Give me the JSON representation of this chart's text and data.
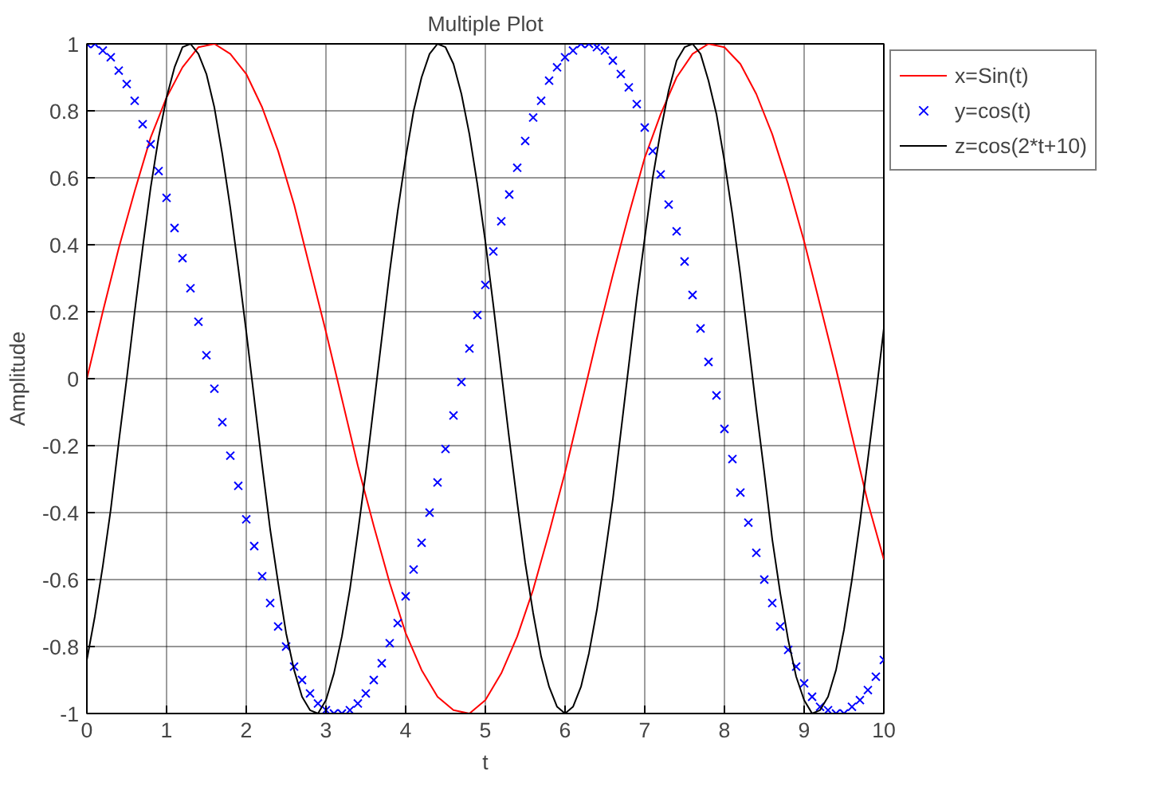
{
  "chart_data": {
    "type": "line",
    "title": "Multiple Plot",
    "xlabel": "t",
    "ylabel": "Amplitude",
    "xlim": [
      0,
      10
    ],
    "ylim": [
      -1,
      1
    ],
    "xticks": [
      0,
      1,
      2,
      3,
      4,
      5,
      6,
      7,
      8,
      9,
      10
    ],
    "yticks": [
      -1,
      -0.8,
      -0.6,
      -0.4,
      -0.2,
      0,
      0.2,
      0.4,
      0.6,
      0.8,
      1
    ],
    "grid": true,
    "legend": "top right",
    "line_style": "solid",
    "series": [
      {
        "name": "x=Sin(t)",
        "color": "#ff0000",
        "x": [
          0,
          0.2,
          0.4,
          0.6,
          0.8,
          1,
          1.2,
          1.4,
          1.6,
          1.8,
          2,
          2.2,
          2.4,
          2.6,
          2.8,
          3,
          3.2,
          3.4,
          3.6,
          3.8,
          4,
          4.2,
          4.4,
          4.6,
          4.8,
          5,
          5.2,
          5.4,
          5.6,
          5.8,
          6,
          6.2,
          6.4,
          6.6,
          6.8,
          7,
          7.2,
          7.4,
          7.6,
          7.8,
          8,
          8.2,
          8.4,
          8.6,
          8.8,
          9,
          9.2,
          9.4,
          9.6,
          9.8,
          10
        ],
        "values": [
          0,
          0.2,
          0.39,
          0.56,
          0.72,
          0.84,
          0.93,
          0.99,
          1,
          0.97,
          0.91,
          0.81,
          0.68,
          0.52,
          0.33,
          0.14,
          -0.06,
          -0.26,
          -0.44,
          -0.61,
          -0.76,
          -0.87,
          -0.95,
          -0.99,
          -1,
          -0.96,
          -0.88,
          -0.77,
          -0.63,
          -0.46,
          -0.28,
          -0.08,
          0.12,
          0.31,
          0.49,
          0.66,
          0.79,
          0.9,
          0.97,
          1,
          0.99,
          0.94,
          0.85,
          0.73,
          0.58,
          0.41,
          0.22,
          0.03,
          -0.17,
          -0.37,
          -0.54
        ]
      },
      {
        "name": "y=cos(t)",
        "color": "#0000ff",
        "type": "scatter",
        "marker": "cross",
        "x": [
          0,
          0.1,
          0.2,
          0.3,
          0.4,
          0.5,
          0.6,
          0.7,
          0.8,
          0.9,
          1,
          1.1,
          1.2,
          1.3,
          1.4,
          1.5,
          1.6,
          1.7,
          1.8,
          1.9,
          2,
          2.1,
          2.2,
          2.3,
          2.4,
          2.5,
          2.6,
          2.7,
          2.8,
          2.9,
          3,
          3.1,
          3.2,
          3.3,
          3.4,
          3.5,
          3.6,
          3.7,
          3.8,
          3.9,
          4,
          4.1,
          4.2,
          4.3,
          4.4,
          4.5,
          4.6,
          4.7,
          4.8,
          4.9,
          5,
          5.1,
          5.2,
          5.3,
          5.4,
          5.5,
          5.6,
          5.7,
          5.8,
          5.9,
          6,
          6.1,
          6.2,
          6.3,
          6.4,
          6.5,
          6.6,
          6.7,
          6.8,
          6.9,
          7,
          7.1,
          7.2,
          7.3,
          7.4,
          7.5,
          7.6,
          7.7,
          7.8,
          7.9,
          8,
          8.1,
          8.2,
          8.3,
          8.4,
          8.5,
          8.6,
          8.7,
          8.8,
          8.9,
          9,
          9.1,
          9.2,
          9.3,
          9.4,
          9.5,
          9.6,
          9.7,
          9.8,
          9.9,
          10
        ],
        "values": [
          1,
          1,
          0.98,
          0.96,
          0.92,
          0.88,
          0.83,
          0.76,
          0.7,
          0.62,
          0.54,
          0.45,
          0.36,
          0.27,
          0.17,
          0.07,
          -0.03,
          -0.13,
          -0.23,
          -0.32,
          -0.42,
          -0.5,
          -0.59,
          -0.67,
          -0.74,
          -0.8,
          -0.86,
          -0.9,
          -0.94,
          -0.97,
          -0.99,
          -1,
          -1,
          -0.99,
          -0.97,
          -0.94,
          -0.9,
          -0.85,
          -0.79,
          -0.73,
          -0.65,
          -0.57,
          -0.49,
          -0.4,
          -0.31,
          -0.21,
          -0.11,
          -0.01,
          0.09,
          0.19,
          0.28,
          0.38,
          0.47,
          0.55,
          0.63,
          0.71,
          0.78,
          0.83,
          0.89,
          0.93,
          0.96,
          0.98,
          1,
          1,
          0.99,
          0.98,
          0.95,
          0.91,
          0.87,
          0.82,
          0.75,
          0.68,
          0.61,
          0.52,
          0.44,
          0.35,
          0.25,
          0.15,
          0.05,
          -0.05,
          -0.15,
          -0.24,
          -0.34,
          -0.43,
          -0.52,
          -0.6,
          -0.67,
          -0.74,
          -0.81,
          -0.86,
          -0.91,
          -0.95,
          -0.98,
          -0.99,
          -1,
          -1,
          -0.98,
          -0.96,
          -0.93,
          -0.89,
          -0.84
        ]
      },
      {
        "name": "z=cos(2*t+10)",
        "color": "#000000",
        "x": [
          0,
          0.1,
          0.2,
          0.3,
          0.4,
          0.5,
          0.6,
          0.7,
          0.8,
          0.9,
          1,
          1.1,
          1.2,
          1.3,
          1.4,
          1.5,
          1.6,
          1.7,
          1.8,
          1.9,
          2,
          2.1,
          2.2,
          2.3,
          2.4,
          2.5,
          2.6,
          2.7,
          2.8,
          2.9,
          3,
          3.1,
          3.2,
          3.3,
          3.4,
          3.5,
          3.6,
          3.7,
          3.8,
          3.9,
          4,
          4.1,
          4.2,
          4.3,
          4.4,
          4.5,
          4.6,
          4.7,
          4.8,
          4.9,
          5,
          5.1,
          5.2,
          5.3,
          5.4,
          5.5,
          5.6,
          5.7,
          5.8,
          5.9,
          6,
          6.1,
          6.2,
          6.3,
          6.4,
          6.5,
          6.6,
          6.7,
          6.8,
          6.9,
          7,
          7.1,
          7.2,
          7.3,
          7.4,
          7.5,
          7.6,
          7.7,
          7.8,
          7.9,
          8,
          8.1,
          8.2,
          8.3,
          8.4,
          8.5,
          8.6,
          8.7,
          8.8,
          8.9,
          9,
          9.1,
          9.2,
          9.3,
          9.4,
          9.5,
          9.6,
          9.7,
          9.8,
          9.9,
          10
        ],
        "values": [
          -0.84,
          -0.71,
          -0.56,
          -0.39,
          -0.19,
          0,
          0.2,
          0.39,
          0.57,
          0.72,
          0.84,
          0.93,
          0.99,
          1,
          0.97,
          0.91,
          0.81,
          0.67,
          0.51,
          0.33,
          0.14,
          -0.06,
          -0.26,
          -0.45,
          -0.61,
          -0.76,
          -0.87,
          -0.95,
          -0.99,
          -1,
          -0.96,
          -0.88,
          -0.77,
          -0.63,
          -0.46,
          -0.28,
          -0.08,
          0.12,
          0.32,
          0.5,
          0.66,
          0.8,
          0.9,
          0.97,
          1,
          0.99,
          0.94,
          0.85,
          0.73,
          0.58,
          0.41,
          0.22,
          0.02,
          -0.18,
          -0.37,
          -0.55,
          -0.7,
          -0.83,
          -0.92,
          -0.98,
          -1,
          -0.98,
          -0.92,
          -0.82,
          -0.69,
          -0.53,
          -0.36,
          -0.16,
          0.04,
          0.24,
          0.42,
          0.6,
          0.74,
          0.86,
          0.95,
          0.99,
          1,
          0.97,
          0.89,
          0.79,
          0.65,
          0.49,
          0.31,
          0.11,
          -0.09,
          -0.28,
          -0.48,
          -0.64,
          -0.78,
          -0.89,
          -0.96,
          -1,
          -0.99,
          -0.95,
          -0.87,
          -0.75,
          -0.6,
          -0.43,
          -0.24,
          -0.05,
          0.15
        ]
      }
    ]
  }
}
